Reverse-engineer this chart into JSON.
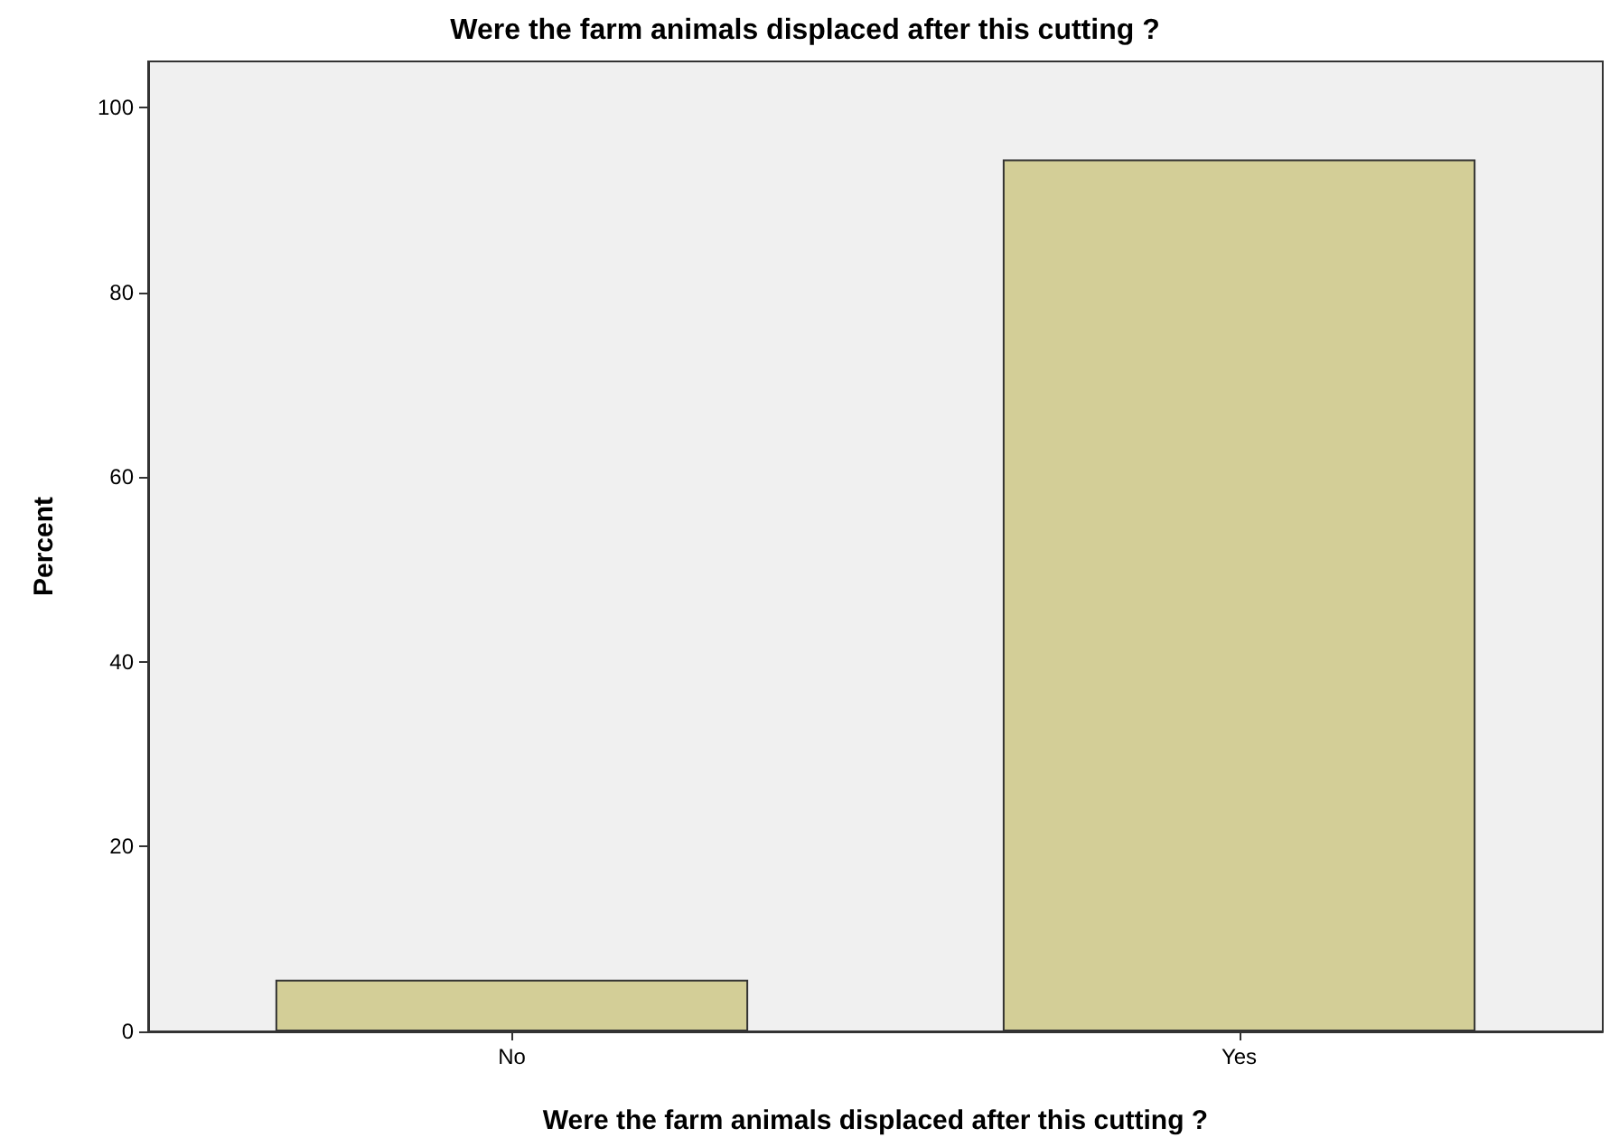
{
  "chart_data": {
    "type": "bar",
    "title": "Were the farm animals displaced after this cutting ?",
    "xlabel": "Were the farm animals displaced after this cutting ?",
    "ylabel": "Percent",
    "categories": [
      "No",
      "Yes"
    ],
    "values": [
      5.6,
      94.4
    ],
    "color": "#d3ce97",
    "ylim": [
      0,
      105
    ],
    "yticks": [
      0,
      20,
      40,
      60,
      80,
      100
    ],
    "grid": false
  }
}
